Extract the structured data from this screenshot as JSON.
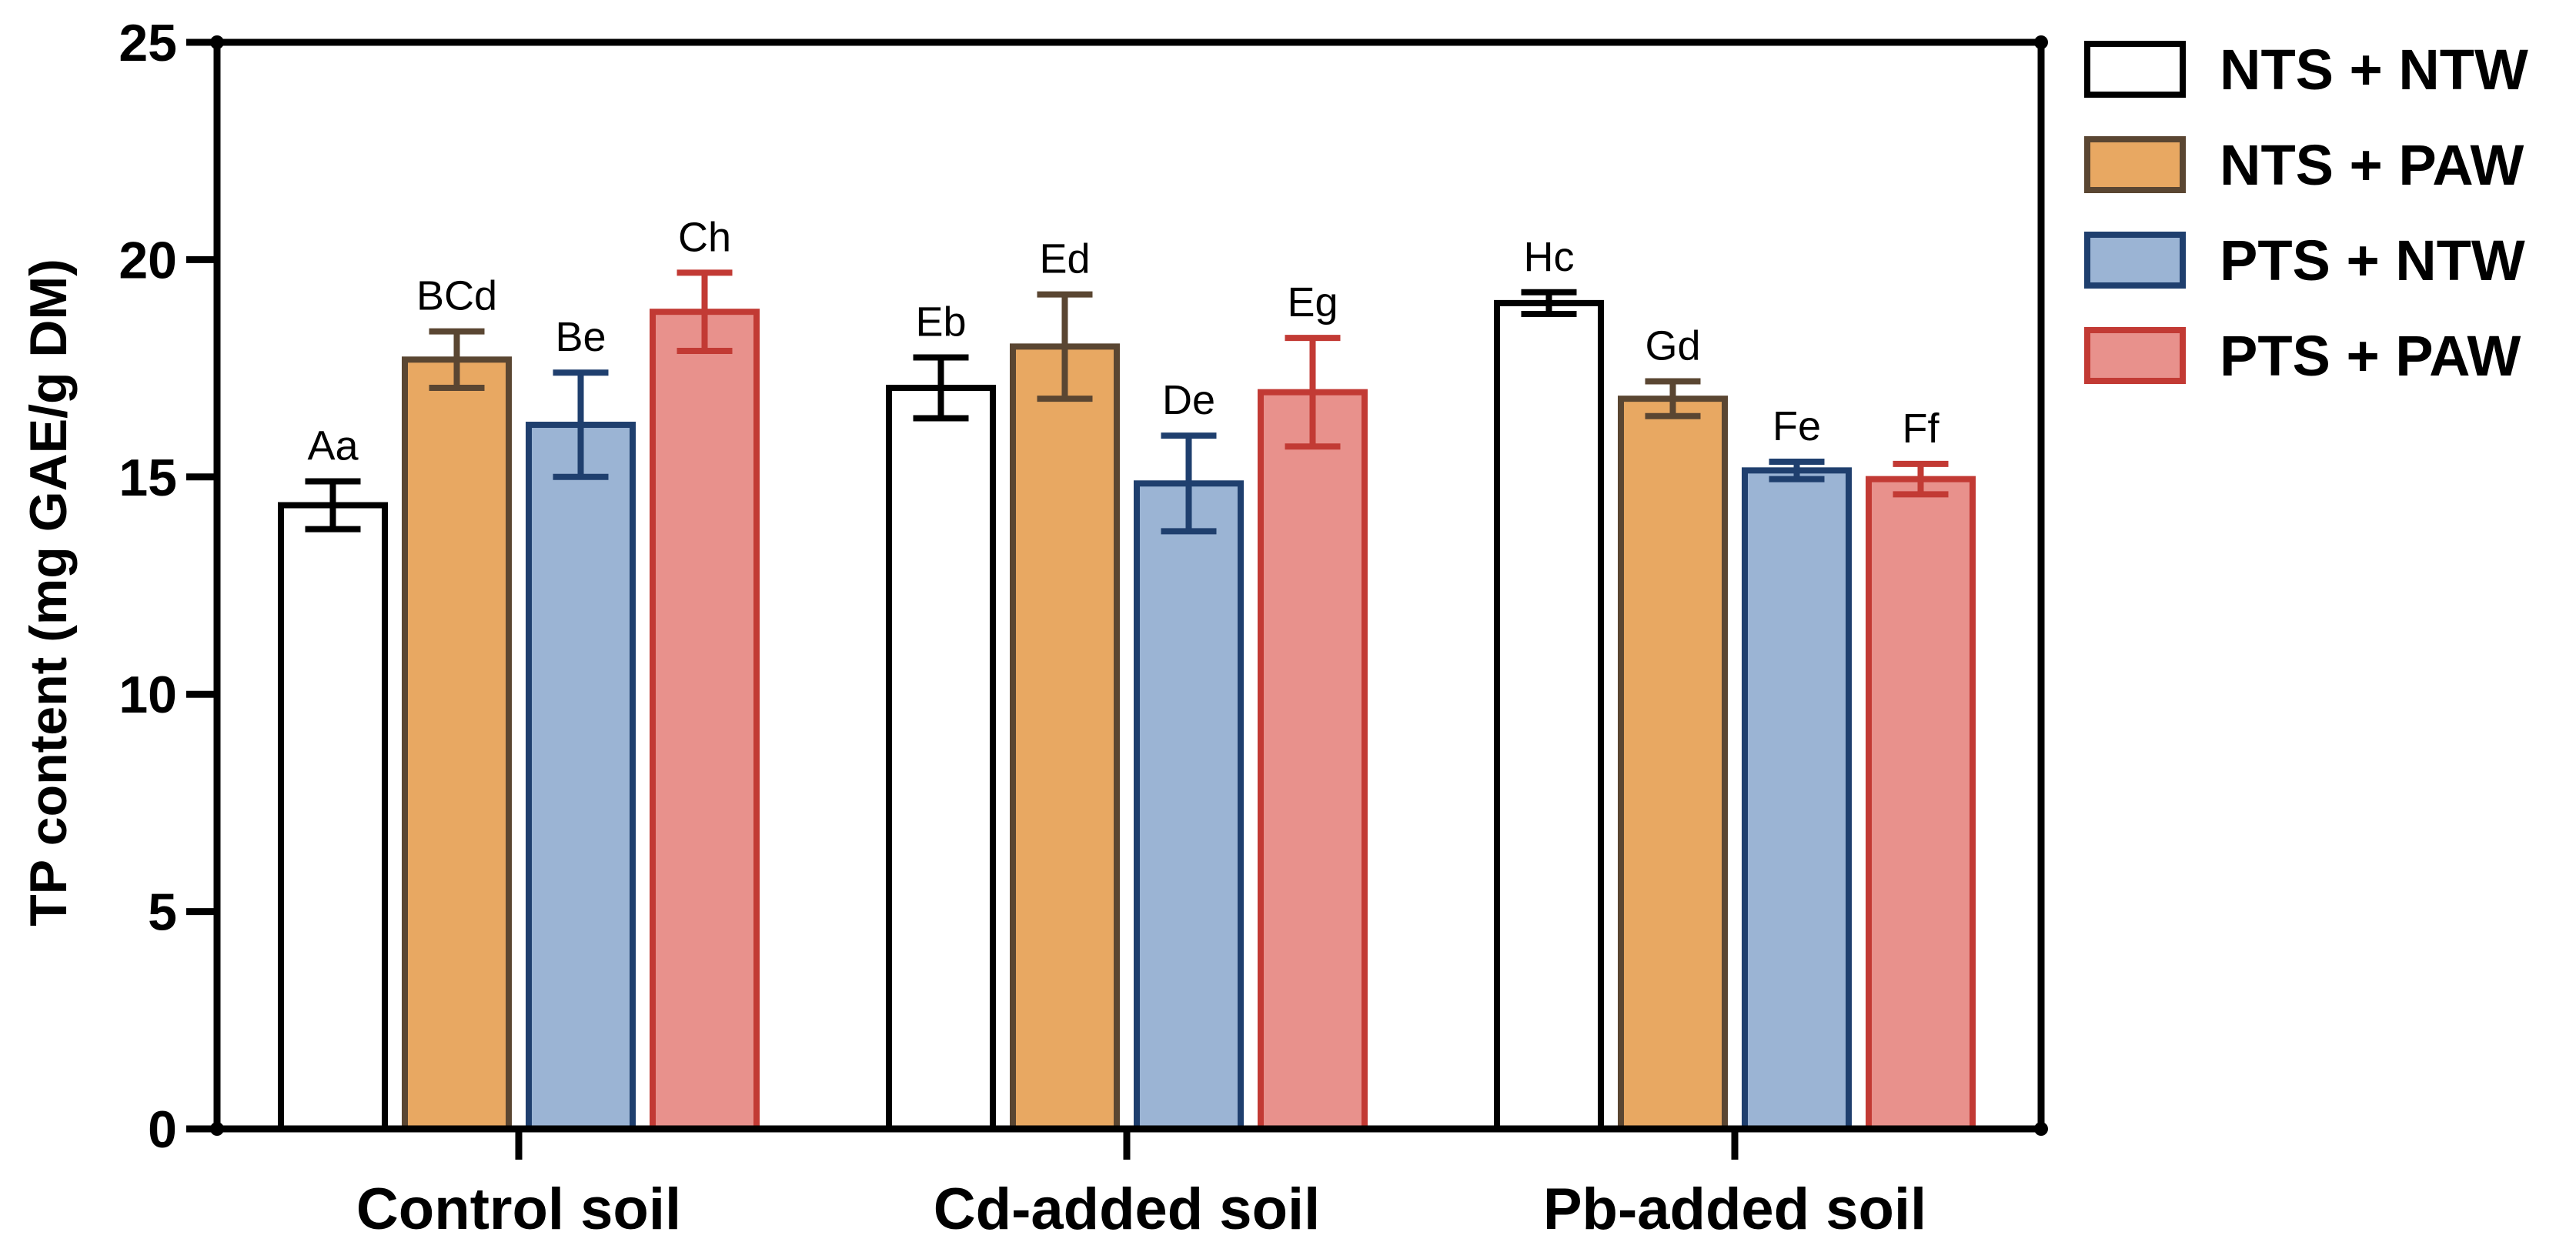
{
  "chart_data": {
    "type": "bar",
    "title": "",
    "xlabel": "",
    "ylabel": "TP content (mg GAE/g DM)",
    "ylim": [
      0,
      25
    ],
    "yticks": [
      0,
      5,
      10,
      15,
      20,
      25
    ],
    "grid": false,
    "legend_position": "right",
    "categories": [
      "Control soil",
      "Cd-added soil",
      "Pb-added soil"
    ],
    "series": [
      {
        "name": "NTS + NTW",
        "fill": "#ffffff",
        "stroke": "#000000",
        "values": [
          14.35,
          17.05,
          19.0
        ],
        "errors": [
          0.55,
          0.7,
          0.25
        ],
        "labels": [
          "Aa",
          "Eb",
          "Hc"
        ]
      },
      {
        "name": "NTS + PAW",
        "fill": "#e8a862",
        "stroke": "#5a4632",
        "values": [
          17.7,
          18.0,
          16.8
        ],
        "errors": [
          0.65,
          1.2,
          0.4
        ],
        "labels": [
          "BCd",
          "Ed",
          "Gd"
        ]
      },
      {
        "name": "PTS + NTW",
        "fill": "#9bb4d4",
        "stroke": "#1f3f6e",
        "values": [
          16.2,
          14.85,
          15.15
        ],
        "errors": [
          1.2,
          1.1,
          0.2
        ],
        "labels": [
          "Be",
          "De",
          "Fe"
        ]
      },
      {
        "name": "PTS + PAW",
        "fill": "#e8918c",
        "stroke": "#c23a34",
        "values": [
          18.8,
          16.95,
          14.95
        ],
        "errors": [
          0.9,
          1.25,
          0.35
        ],
        "labels": [
          "Ch",
          "Eg",
          "Ff"
        ]
      }
    ]
  }
}
